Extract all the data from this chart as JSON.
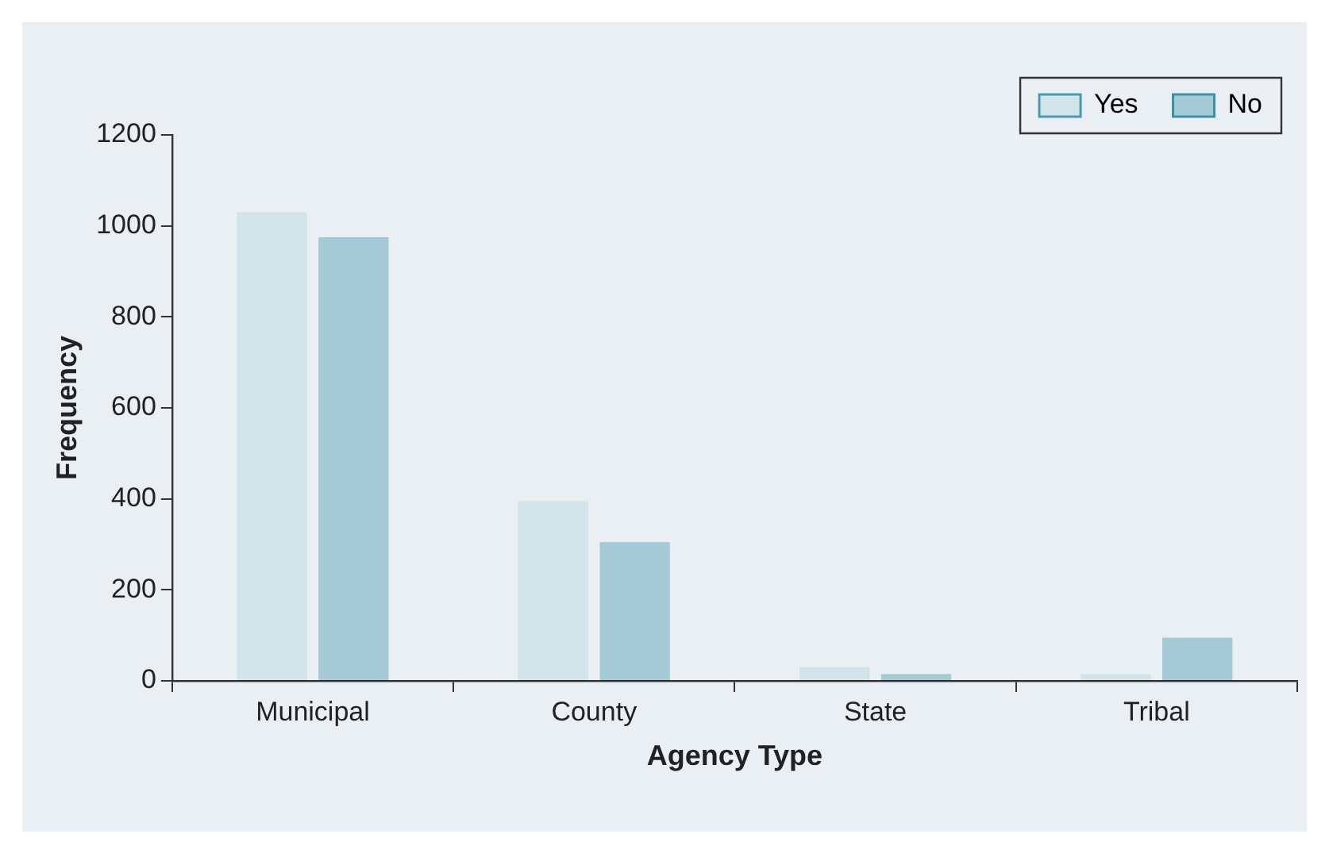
{
  "chart_data": {
    "type": "bar",
    "xlabel": "Agency Type",
    "ylabel": "Frequency",
    "categories": [
      "Municipal",
      "County",
      "State",
      "Tribal"
    ],
    "series": [
      {
        "name": "Yes",
        "color": "#d3e3ea",
        "values": [
          1030,
          395,
          30,
          15
        ]
      },
      {
        "name": "No",
        "color": "#a5cad6",
        "values": [
          975,
          305,
          15,
          95
        ]
      }
    ],
    "ylim": [
      0,
      1200
    ],
    "yticks": [
      0,
      200,
      400,
      600,
      800,
      1000,
      1200
    ],
    "grid": false,
    "legend": "top right"
  }
}
